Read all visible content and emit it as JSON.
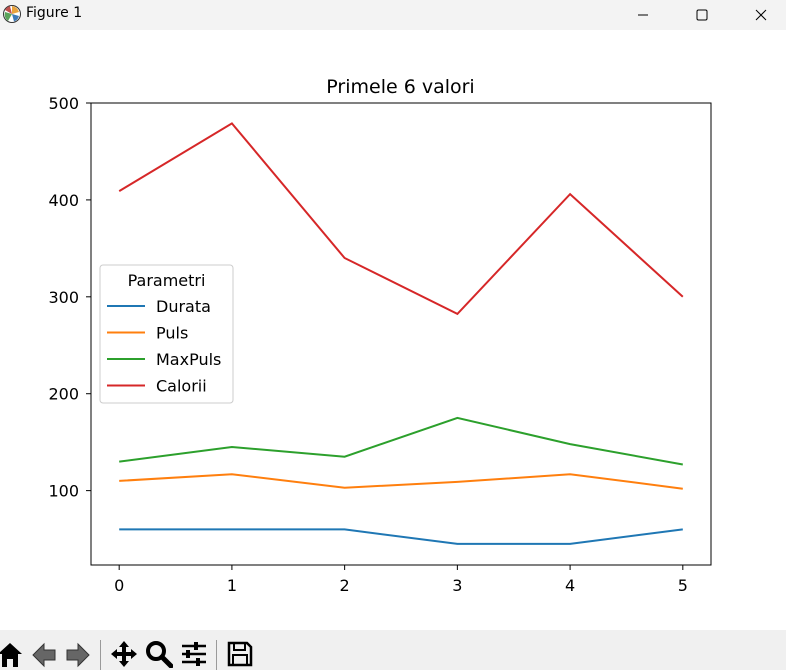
{
  "window": {
    "title": "Figure 1",
    "icons": [
      "matplotlib-logo-icon",
      "minimize-icon",
      "maximize-icon",
      "close-icon"
    ]
  },
  "toolbar": {
    "icons": [
      "home-icon",
      "back-icon",
      "forward-icon",
      "pan-icon",
      "zoom-icon",
      "configure-subplots-icon",
      "save-icon"
    ]
  },
  "chart_data": {
    "type": "line",
    "title": "Primele 6 valori",
    "xlabel": "",
    "ylabel": "",
    "x": [
      0,
      1,
      2,
      3,
      4,
      5
    ],
    "xlim": [
      -0.25,
      5.25
    ],
    "ylim": [
      23.25,
      500.0
    ],
    "xticks": [
      0,
      1,
      2,
      3,
      4,
      5
    ],
    "yticks": [
      100,
      200,
      300,
      400,
      500
    ],
    "grid": false,
    "legend": {
      "title": "Parametri",
      "placement": "center-left"
    },
    "series": [
      {
        "name": "Durata",
        "color": "#1f77b4",
        "values": [
          60,
          60,
          60,
          45,
          45,
          60
        ]
      },
      {
        "name": "Puls",
        "color": "#ff7f0e",
        "values": [
          110,
          117,
          103,
          109,
          117,
          102
        ]
      },
      {
        "name": "MaxPuls",
        "color": "#2ca02c",
        "values": [
          130,
          145,
          135,
          175,
          148,
          127
        ]
      },
      {
        "name": "Calorii",
        "color": "#d62728",
        "values": [
          409.1,
          479.0,
          340.0,
          282.4,
          406.0,
          300.0
        ]
      }
    ]
  }
}
